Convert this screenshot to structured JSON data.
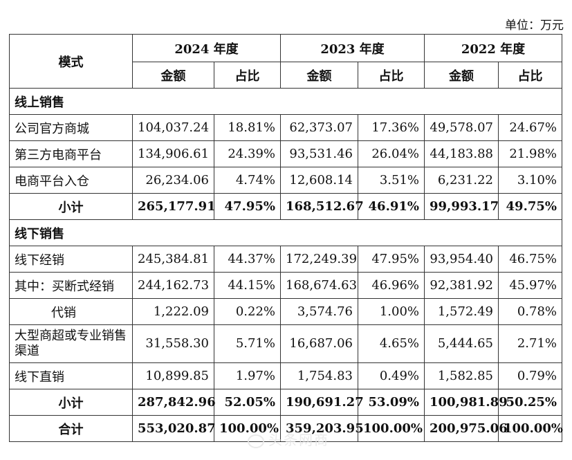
{
  "unit_label": "单位：万元",
  "header": {
    "mode": "模式",
    "years": [
      "2024 年度",
      "2023 年度",
      "2022 年度"
    ],
    "amount": "金额",
    "ratio": "占比"
  },
  "online": {
    "title": "线上销售",
    "rows": [
      {
        "label": "公司官方商城",
        "v": [
          "104,037.24",
          "18.81%",
          "62,373.07",
          "17.36%",
          "49,578.07",
          "24.67%"
        ]
      },
      {
        "label": "第三方电商平台",
        "v": [
          "134,906.61",
          "24.39%",
          "93,531.46",
          "26.04%",
          "44,183.88",
          "21.98%"
        ]
      },
      {
        "label": "电商平台入仓",
        "v": [
          "26,234.06",
          "4.74%",
          "12,608.14",
          "3.51%",
          "6,231.22",
          "3.10%"
        ]
      }
    ],
    "subtotal": {
      "label": "小计",
      "v": [
        "265,177.91",
        "47.95%",
        "168,512.67",
        "46.91%",
        "99,993.17",
        "49.75%"
      ]
    }
  },
  "offline": {
    "title": "线下销售",
    "rows": [
      {
        "label": "线下经销",
        "v": [
          "245,384.81",
          "44.37%",
          "172,249.39",
          "47.95%",
          "93,954.40",
          "46.75%"
        ]
      },
      {
        "label": "其中：买断式经销",
        "v": [
          "244,162.73",
          "44.15%",
          "168,674.63",
          "46.96%",
          "92,381.92",
          "45.97%"
        ]
      },
      {
        "label": "代销",
        "v": [
          "1,222.09",
          "0.22%",
          "3,574.76",
          "1.00%",
          "1,572.49",
          "0.78%"
        ]
      },
      {
        "label": "大型商超或专业销售渠道",
        "v": [
          "31,558.30",
          "5.71%",
          "16,687.06",
          "4.65%",
          "5,444.65",
          "2.71%"
        ]
      },
      {
        "label": "线下直销",
        "v": [
          "10,899.85",
          "1.97%",
          "1,754.83",
          "0.49%",
          "1,582.85",
          "0.79%"
        ]
      }
    ],
    "subtotal": {
      "label": "小计",
      "v": [
        "287,842.96",
        "52.05%",
        "190,691.27",
        "53.09%",
        "100,981.89",
        "50.25%"
      ]
    }
  },
  "total": {
    "label": "合计",
    "v": [
      "553,020.87",
      "100.00%",
      "359,203.95",
      "100.00%",
      "200,975.06",
      "100.00%"
    ]
  },
  "watermark": "头条网商"
}
